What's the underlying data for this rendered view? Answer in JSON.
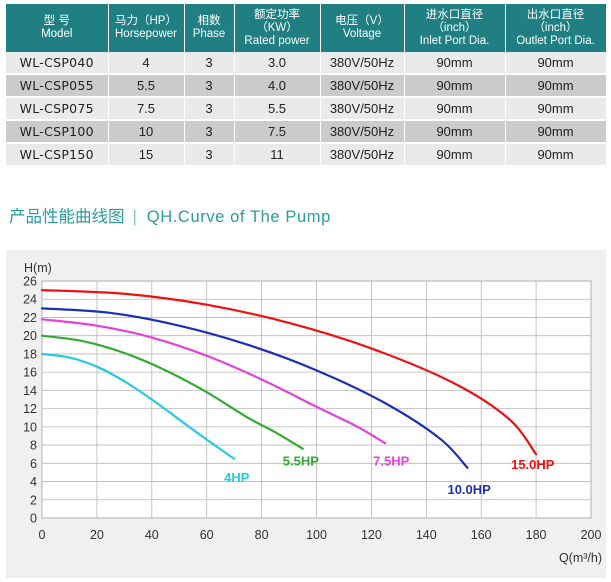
{
  "table": {
    "headers": [
      {
        "zh": "型  号",
        "en": "Model"
      },
      {
        "zh": "马力（HP）",
        "en": "Horsepower"
      },
      {
        "zh": "相数",
        "en": "Phase"
      },
      {
        "zh": "额定功率",
        "zh2": "（KW）",
        "en": "Rated power"
      },
      {
        "zh": "电压（V）",
        "en": "Voltage"
      },
      {
        "zh": "进水口直径",
        "zh2": "（inch）",
        "en": "Inlet Port Dia."
      },
      {
        "zh": "出水口直径",
        "zh2": "（inch）",
        "en": "Outlet Port Dia."
      }
    ],
    "rows": [
      [
        "WL-CSP040",
        "4",
        "3",
        "3.0",
        "380V/50Hz",
        "90mm",
        "90mm"
      ],
      [
        "WL-CSP055",
        "5.5",
        "3",
        "4.0",
        "380V/50Hz",
        "90mm",
        "90mm"
      ],
      [
        "WL-CSP075",
        "7.5",
        "3",
        "5.5",
        "380V/50Hz",
        "90mm",
        "90mm"
      ],
      [
        "WL-CSP100",
        "10",
        "3",
        "7.5",
        "380V/50Hz",
        "90mm",
        "90mm"
      ],
      [
        "WL-CSP150",
        "15",
        "3",
        "11",
        "380V/50Hz",
        "90mm",
        "90mm"
      ]
    ]
  },
  "section": {
    "title_zh": "产品性能曲线图",
    "separator": "|",
    "title_en": "QH.Curve of The Pump"
  },
  "chart_data": {
    "type": "line",
    "ylabel": "H(m)",
    "xlabel": "Q(m³/h)",
    "xlim": [
      0,
      200
    ],
    "ylim": [
      0,
      26
    ],
    "xticks": [
      0,
      20,
      40,
      60,
      80,
      100,
      120,
      140,
      160,
      180,
      200
    ],
    "yticks": [
      0,
      2,
      4,
      6,
      8,
      10,
      12,
      14,
      16,
      18,
      20,
      22,
      24,
      26
    ],
    "grid": true,
    "series": [
      {
        "name": "4HP",
        "color": "#26c9e0",
        "x": [
          0,
          10,
          20,
          30,
          40,
          50,
          60,
          70
        ],
        "y": [
          18.0,
          17.6,
          16.6,
          15.0,
          13.0,
          10.8,
          8.6,
          6.5
        ]
      },
      {
        "name": "5.5HP",
        "color": "#33aa33",
        "x": [
          0,
          15,
          30,
          45,
          60,
          75,
          85,
          95
        ],
        "y": [
          20.0,
          19.4,
          18.1,
          16.2,
          13.8,
          11.0,
          9.4,
          7.6
        ]
      },
      {
        "name": "7.5HP",
        "color": "#e641d8",
        "x": [
          0,
          20,
          40,
          60,
          80,
          100,
          115,
          125
        ],
        "y": [
          21.8,
          21.1,
          19.8,
          17.8,
          15.2,
          12.2,
          10.0,
          8.2
        ]
      },
      {
        "name": "10.0HP",
        "color": "#1c2fb5",
        "x": [
          0,
          25,
          50,
          75,
          100,
          125,
          145,
          155
        ],
        "y": [
          23.0,
          22.5,
          21.1,
          19.0,
          16.2,
          12.6,
          8.7,
          5.5
        ]
      },
      {
        "name": "15.0HP",
        "color": "#ee1111",
        "x": [
          0,
          30,
          60,
          90,
          120,
          150,
          170,
          180
        ],
        "y": [
          25.0,
          24.6,
          23.4,
          21.4,
          18.6,
          14.8,
          10.9,
          7.0
        ]
      }
    ]
  }
}
